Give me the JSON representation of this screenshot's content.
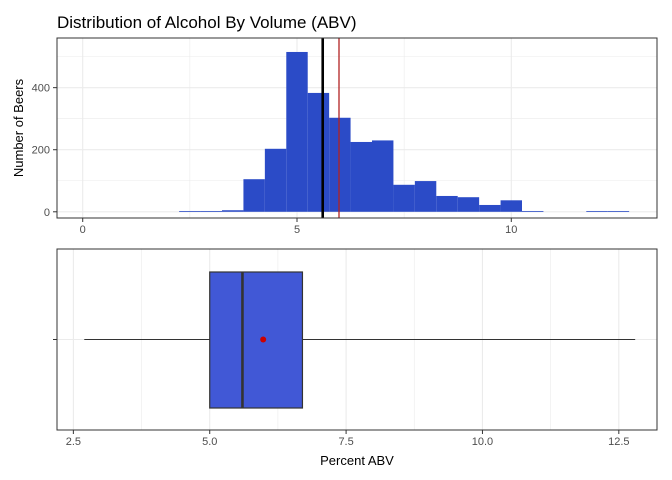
{
  "title": "Distribution of Alcohol By Volume (ABV)",
  "colors": {
    "bar_fill": "#2b4bc7",
    "box_fill": "#4158d6",
    "mean_line_hist": "#b22222",
    "median_line": "#000000",
    "mean_point": "#cc0000",
    "grid": "#ebebeb"
  },
  "chart_data": [
    {
      "type": "bar",
      "subtype": "histogram",
      "ylabel": "Number of Beers",
      "xlim": [
        -0.6,
        13.4
      ],
      "ylim": [
        -20,
        560
      ],
      "xticks": [
        0,
        5,
        10
      ],
      "xtick_labels": [
        "0",
        "5",
        "10"
      ],
      "yticks": [
        0,
        200,
        400
      ],
      "ytick_labels": [
        "0",
        "200",
        "400"
      ],
      "bin_width": 0.5,
      "bins": [
        {
          "x0": 2.25,
          "x1": 2.75,
          "count": 1
        },
        {
          "x0": 2.75,
          "x1": 3.25,
          "count": 2
        },
        {
          "x0": 3.25,
          "x1": 3.75,
          "count": 5
        },
        {
          "x0": 3.75,
          "x1": 4.25,
          "count": 105
        },
        {
          "x0": 4.25,
          "x1": 4.75,
          "count": 203
        },
        {
          "x0": 4.75,
          "x1": 5.25,
          "count": 515
        },
        {
          "x0": 5.25,
          "x1": 5.75,
          "count": 383
        },
        {
          "x0": 5.75,
          "x1": 6.25,
          "count": 303
        },
        {
          "x0": 6.25,
          "x1": 6.75,
          "count": 225
        },
        {
          "x0": 6.75,
          "x1": 7.25,
          "count": 230
        },
        {
          "x0": 7.25,
          "x1": 7.75,
          "count": 87
        },
        {
          "x0": 7.75,
          "x1": 8.25,
          "count": 99
        },
        {
          "x0": 8.25,
          "x1": 8.75,
          "count": 51
        },
        {
          "x0": 8.75,
          "x1": 9.25,
          "count": 47
        },
        {
          "x0": 9.25,
          "x1": 9.75,
          "count": 22
        },
        {
          "x0": 9.75,
          "x1": 10.25,
          "count": 37
        },
        {
          "x0": 10.25,
          "x1": 10.75,
          "count": 1
        },
        {
          "x0": 11.75,
          "x1": 12.25,
          "count": 1
        },
        {
          "x0": 12.25,
          "x1": 12.75,
          "count": 1
        }
      ],
      "vlines": [
        {
          "name": "median",
          "x": 5.6,
          "color": "#000000",
          "width": 2.6
        },
        {
          "name": "mean",
          "x": 5.98,
          "color": "#b22222",
          "width": 1.3
        }
      ],
      "grid": true
    },
    {
      "type": "boxplot",
      "xlabel": "Percent ABV",
      "xlim": [
        2.2,
        13.2
      ],
      "xticks": [
        2.5,
        5.0,
        7.5,
        10.0,
        12.5
      ],
      "xtick_labels": [
        "2.5",
        "5.0",
        "7.5",
        "10.0",
        "12.5"
      ],
      "min": 2.7,
      "q1": 5.0,
      "median": 5.6,
      "q3": 6.7,
      "max": 12.8,
      "mean": 5.98,
      "grid": true
    }
  ]
}
